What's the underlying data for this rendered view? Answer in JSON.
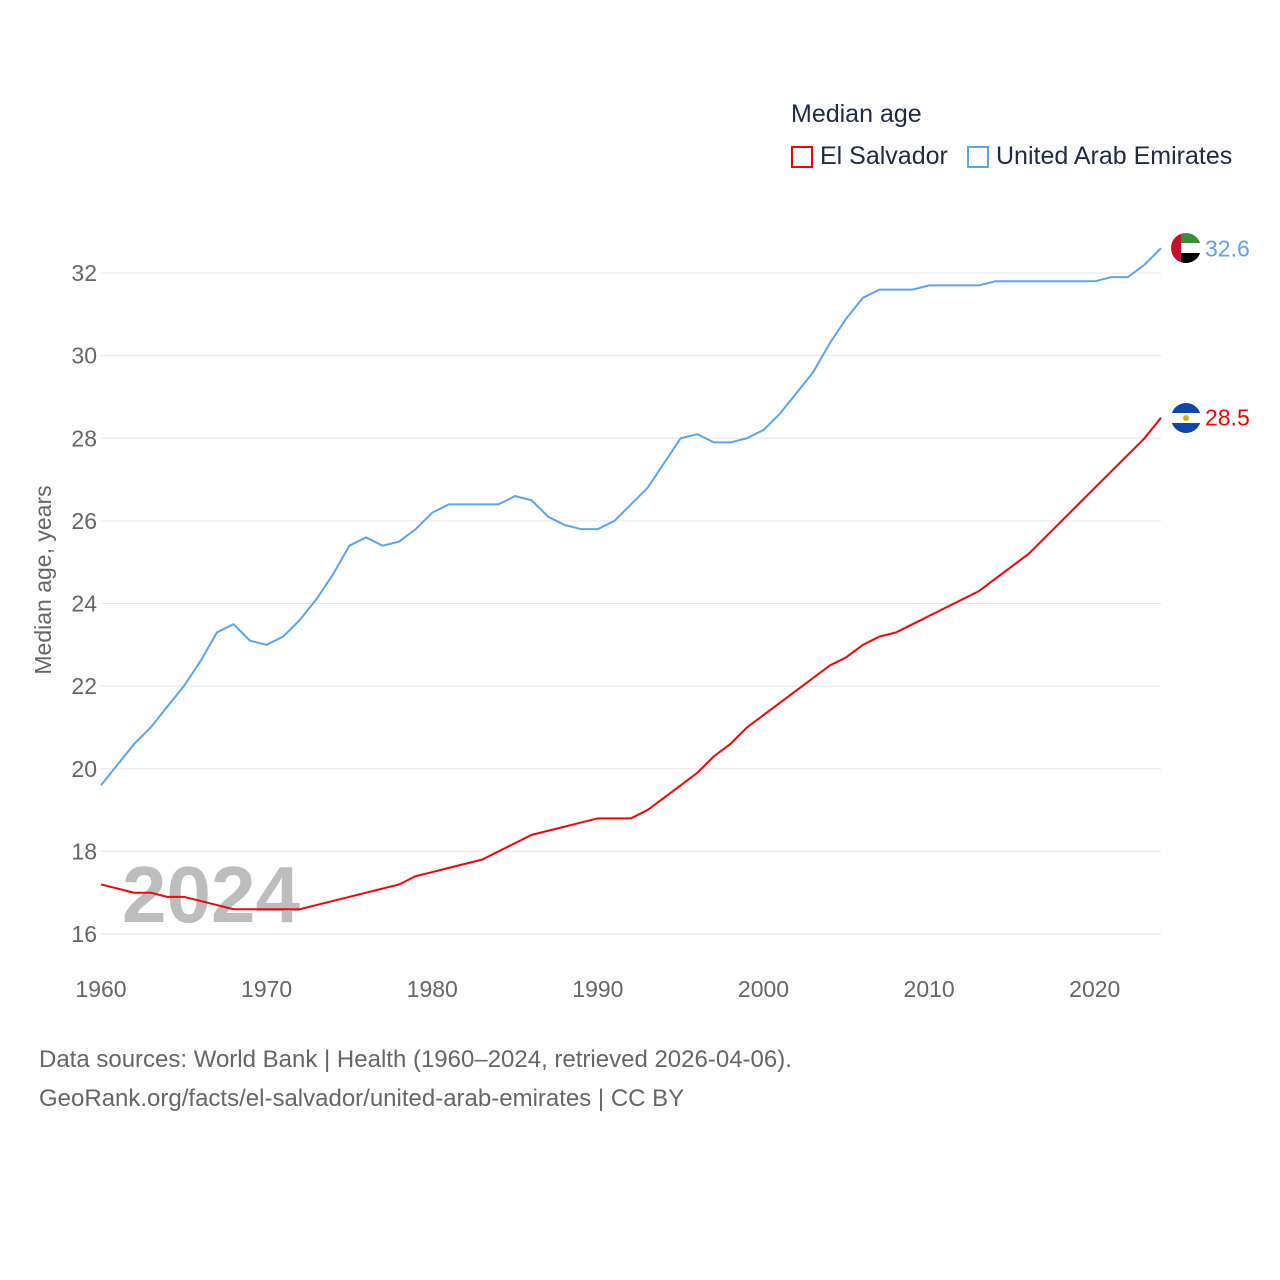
{
  "chart_data": {
    "type": "line",
    "title": "Median age",
    "ylabel": "Median age, years",
    "xlabel": "",
    "xlim": [
      1960,
      2024
    ],
    "ylim": [
      16,
      32.6
    ],
    "yticks": [
      16,
      18,
      20,
      22,
      24,
      26,
      28,
      30,
      32
    ],
    "xticks": [
      1960,
      1970,
      1980,
      1990,
      2000,
      2010,
      2020
    ],
    "grid": true,
    "legend_placement": "top-right",
    "watermark_year": "2024",
    "x": [
      1960,
      1961,
      1962,
      1963,
      1964,
      1965,
      1966,
      1967,
      1968,
      1969,
      1970,
      1971,
      1972,
      1973,
      1974,
      1975,
      1976,
      1977,
      1978,
      1979,
      1980,
      1981,
      1982,
      1983,
      1984,
      1985,
      1986,
      1987,
      1988,
      1989,
      1990,
      1991,
      1992,
      1993,
      1994,
      1995,
      1996,
      1997,
      1998,
      1999,
      2000,
      2001,
      2002,
      2003,
      2004,
      2005,
      2006,
      2007,
      2008,
      2009,
      2010,
      2011,
      2012,
      2013,
      2014,
      2015,
      2016,
      2017,
      2018,
      2019,
      2020,
      2021,
      2022,
      2023,
      2024
    ],
    "series": [
      {
        "name": "El Salvador",
        "color": "#ff0000",
        "end_label": "28.5",
        "flag": "el-salvador-flag",
        "values": [
          17.2,
          17.1,
          17.0,
          17.0,
          16.9,
          16.9,
          16.8,
          16.7,
          16.6,
          16.6,
          16.6,
          16.6,
          16.6,
          16.7,
          16.8,
          16.9,
          17.0,
          17.1,
          17.2,
          17.4,
          17.5,
          17.6,
          17.7,
          17.8,
          18.0,
          18.2,
          18.4,
          18.5,
          18.6,
          18.7,
          18.8,
          18.8,
          18.8,
          19.0,
          19.3,
          19.6,
          19.9,
          20.3,
          20.6,
          21.0,
          21.3,
          21.6,
          21.9,
          22.2,
          22.5,
          22.7,
          23.0,
          23.2,
          23.3,
          23.5,
          23.7,
          23.9,
          24.1,
          24.3,
          24.6,
          24.9,
          25.2,
          25.6,
          26.0,
          26.4,
          26.8,
          27.2,
          27.6,
          28.0,
          28.5
        ]
      },
      {
        "name": "United Arab Emirates",
        "color": "#5aa5ef",
        "end_label": "32.6",
        "flag": "uae-flag",
        "values": [
          19.6,
          20.1,
          20.6,
          21.0,
          21.5,
          22.0,
          22.6,
          23.3,
          23.5,
          23.1,
          23.0,
          23.2,
          23.6,
          24.1,
          24.7,
          25.4,
          25.6,
          25.4,
          25.5,
          25.8,
          26.2,
          26.4,
          26.4,
          26.4,
          26.4,
          26.6,
          26.5,
          26.1,
          25.9,
          25.8,
          25.8,
          26.0,
          26.4,
          26.8,
          27.4,
          28.0,
          28.1,
          27.9,
          27.9,
          28.0,
          28.2,
          28.6,
          29.1,
          29.6,
          30.3,
          30.9,
          31.4,
          31.6,
          31.6,
          31.6,
          31.7,
          31.7,
          31.7,
          31.7,
          31.8,
          31.8,
          31.8,
          31.8,
          31.8,
          31.8,
          31.8,
          31.9,
          31.9,
          32.2,
          32.6
        ]
      }
    ]
  },
  "footer": {
    "line1": "Data sources: World Bank | Health (1960–2024, retrieved 2026-04-06).",
    "line2": "GeoRank.org/facts/el-salvador/united-arab-emirates | CC BY"
  }
}
